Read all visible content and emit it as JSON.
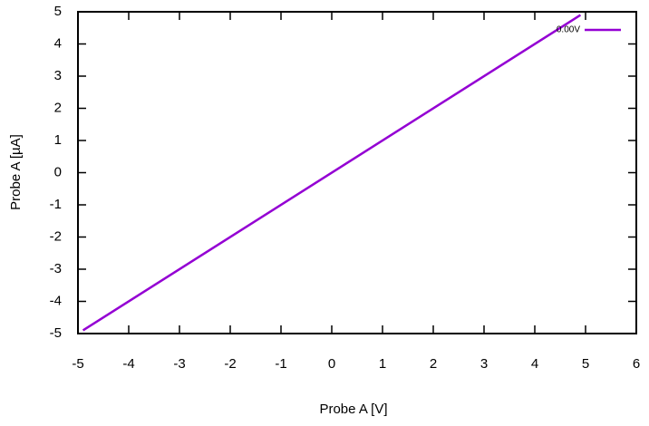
{
  "chart_data": {
    "type": "line",
    "xlabel": "Probe A [V]",
    "ylabel": "Probe A [µA]",
    "x": [
      -4.9,
      4.9
    ],
    "series": [
      {
        "name": "0.00V",
        "color": "#9400d3",
        "values": [
          -4.9,
          4.9
        ]
      }
    ],
    "xlim": [
      -5,
      6
    ],
    "xticks": [
      -5,
      -4,
      -3,
      -2,
      -1,
      0,
      1,
      2,
      3,
      4,
      5,
      6
    ],
    "ylim": [
      -5,
      5
    ],
    "yticks": [
      -5,
      -4,
      -3,
      -2,
      -1,
      0,
      1,
      2,
      3,
      4,
      5
    ],
    "legend": "top-right"
  }
}
